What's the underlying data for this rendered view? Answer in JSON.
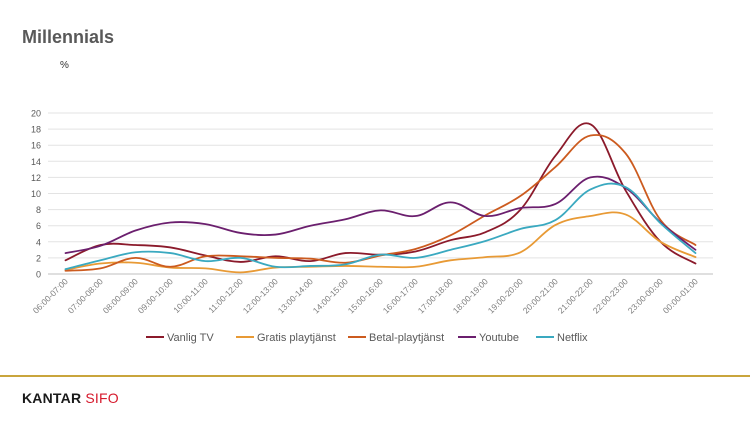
{
  "page": {
    "title": "Millennials",
    "unit_label": "%",
    "logo": {
      "part1": "KANTAR",
      "part2": " SIFO"
    },
    "footer_line_color": "#c9a53c"
  },
  "chart_data": {
    "type": "line",
    "title": "Millennials",
    "ylabel": "%",
    "ylim": [
      0,
      20
    ],
    "yticks": [
      0,
      2,
      4,
      6,
      8,
      10,
      12,
      14,
      16,
      18,
      20
    ],
    "grid": true,
    "legend": "bottom",
    "categories": [
      "06:00-07:00",
      "07:00-08:00",
      "08:00-09:00",
      "09:00-10:00",
      "10:00-11:00",
      "11:00-12:00",
      "12:00-13:00",
      "13:00-14:00",
      "14:00-15:00",
      "15:00-16:00",
      "16:00-17:00",
      "17:00-18:00",
      "18:00-19:00",
      "19:00-20:00",
      "20:00-21:00",
      "21:00-22:00",
      "22:00-23:00",
      "23:00-00:00",
      "00:00-01:00"
    ],
    "series": [
      {
        "name": "Vanlig TV",
        "color": "#8b1a2b",
        "values": [
          1.7,
          3.6,
          3.6,
          3.3,
          2.3,
          1.5,
          2.2,
          1.6,
          2.6,
          2.4,
          2.8,
          4.2,
          5.2,
          8.0,
          14.7,
          18.6,
          10.4,
          4.0,
          1.3
        ]
      },
      {
        "name": "Gratis playtjänst",
        "color": "#e89a35",
        "values": [
          0.5,
          1.3,
          1.4,
          0.8,
          0.7,
          0.2,
          0.8,
          0.9,
          1.0,
          0.9,
          0.9,
          1.7,
          2.1,
          2.7,
          6.1,
          7.2,
          7.4,
          4.0,
          2.1
        ]
      },
      {
        "name": "Betal-playtjänst",
        "color": "#cc5b1f",
        "values": [
          0.4,
          0.7,
          2.0,
          0.9,
          2.2,
          2.2,
          2.0,
          1.9,
          1.4,
          2.3,
          3.1,
          4.8,
          7.3,
          9.7,
          13.3,
          17.2,
          15.0,
          6.7,
          3.6
        ]
      },
      {
        "name": "Youtube",
        "color": "#6b1f6e",
        "values": [
          2.6,
          3.5,
          5.4,
          6.4,
          6.2,
          5.1,
          4.9,
          6.0,
          6.8,
          7.9,
          7.2,
          8.9,
          7.2,
          8.2,
          8.7,
          12.0,
          10.7,
          6.4,
          3.0
        ]
      },
      {
        "name": "Netflix",
        "color": "#3aa9c0",
        "values": [
          0.6,
          1.7,
          2.7,
          2.6,
          1.6,
          2.0,
          0.9,
          1.0,
          1.2,
          2.4,
          2.0,
          3.0,
          4.1,
          5.6,
          6.7,
          10.5,
          10.8,
          6.3,
          2.6
        ]
      }
    ]
  }
}
